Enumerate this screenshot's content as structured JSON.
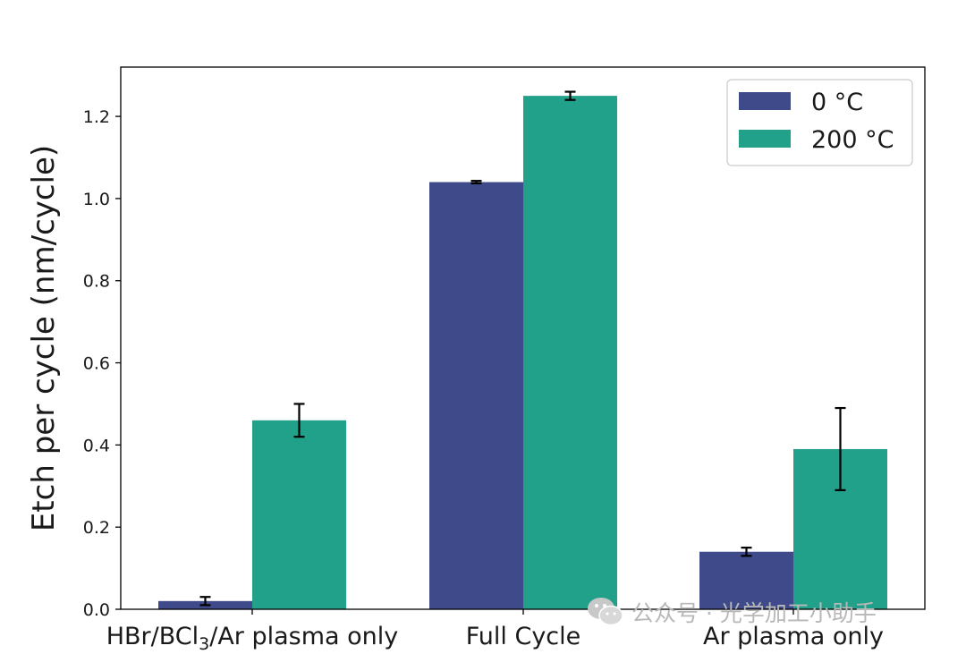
{
  "chart_data": {
    "type": "bar",
    "title": "",
    "xlabel": "",
    "ylabel": "Etch per cycle (nm/cycle)",
    "categories": [
      {
        "pre": "HBr/BCl",
        "sub": "3",
        "post": "/Ar plasma only"
      },
      {
        "pre": "Full Cycle",
        "sub": "",
        "post": ""
      },
      {
        "pre": "Ar plasma only",
        "sub": "",
        "post": ""
      }
    ],
    "series": [
      {
        "name": "0 °C",
        "color": "#3e4a89",
        "values": [
          0.02,
          1.04,
          0.14
        ],
        "errors": [
          0.01,
          0.003,
          0.01
        ]
      },
      {
        "name": "200 °C",
        "color": "#21a08a",
        "values": [
          0.46,
          1.25,
          0.39
        ],
        "errors": [
          0.04,
          0.01,
          0.1
        ]
      }
    ],
    "ylim": [
      0,
      1.32
    ],
    "yticks": [
      0.0,
      0.2,
      0.4,
      0.6,
      0.8,
      1.0,
      1.2
    ],
    "ytick_labels": [
      "0.0",
      "0.2",
      "0.4",
      "0.6",
      "0.8",
      "1.0",
      "1.2"
    ],
    "grid": false,
    "legend_position": "top-right"
  },
  "watermark": {
    "icon": "wechat-icon",
    "text": "公众号 · 光学加工小助手"
  }
}
